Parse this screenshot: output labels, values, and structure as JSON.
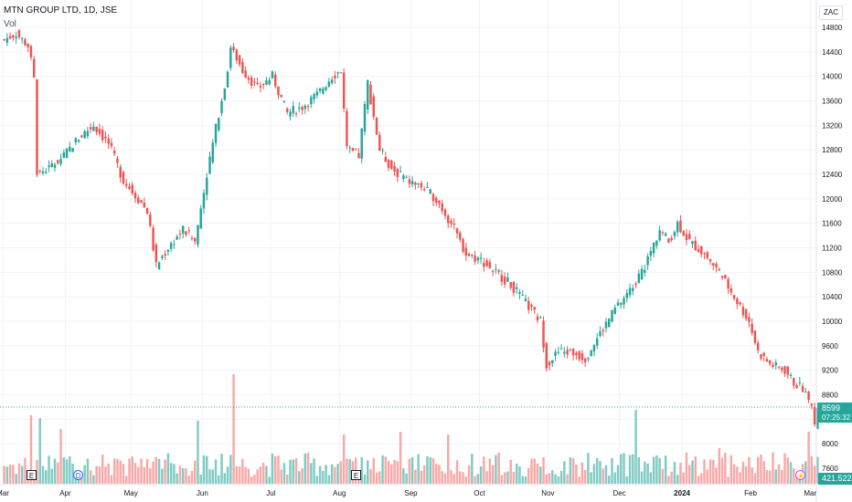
{
  "header": {
    "title": "MTN GROUP LTD, 1D, JSE",
    "volume_label": "Vol"
  },
  "currency": "ZAC",
  "last_price": "8599",
  "countdown": "07:25:32",
  "volume_last": "421.522K",
  "markers": {
    "earnings": "E",
    "dividend": "D",
    "flash": "⚡"
  },
  "colors": {
    "up": "#26a69a",
    "down": "#ef5350",
    "grid": "#f0f3fa",
    "axis_text": "#131722"
  },
  "chart_data": {
    "type": "candlestick",
    "title": "MTN GROUP LTD, 1D, JSE",
    "ylim": [
      7400,
      15000
    ],
    "y_ticks": [
      7600,
      8000,
      8400,
      8800,
      9200,
      9600,
      10000,
      10400,
      10800,
      11200,
      11600,
      12000,
      12400,
      12800,
      13200,
      13600,
      14000,
      14400,
      14800
    ],
    "x_ticks": [
      "Mar",
      "Apr",
      "May",
      "Jun",
      "Jul",
      "Aug",
      "Sep",
      "Oct",
      "Nov",
      "Dec",
      "2024",
      "Feb",
      "Mar"
    ],
    "x_tick_index": [
      0,
      21,
      43,
      67,
      90,
      113,
      137,
      160,
      183,
      207,
      228,
      251,
      271
    ],
    "close_path": [
      [
        0,
        14600
      ],
      [
        4,
        14700
      ],
      [
        8,
        14500
      ],
      [
        10,
        14000
      ],
      [
        11,
        12400
      ],
      [
        15,
        12500
      ],
      [
        20,
        12700
      ],
      [
        25,
        13000
      ],
      [
        30,
        13200
      ],
      [
        35,
        12900
      ],
      [
        40,
        12300
      ],
      [
        45,
        12000
      ],
      [
        48,
        11800
      ],
      [
        51,
        10900
      ],
      [
        55,
        11200
      ],
      [
        60,
        11500
      ],
      [
        64,
        11300
      ],
      [
        68,
        12400
      ],
      [
        72,
        13400
      ],
      [
        75,
        14100
      ],
      [
        76,
        14500
      ],
      [
        80,
        14100
      ],
      [
        85,
        13800
      ],
      [
        90,
        14000
      ],
      [
        95,
        13400
      ],
      [
        100,
        13500
      ],
      [
        105,
        13700
      ],
      [
        110,
        14000
      ],
      [
        113,
        14100
      ],
      [
        115,
        12800
      ],
      [
        119,
        12700
      ],
      [
        122,
        13900
      ],
      [
        126,
        12800
      ],
      [
        130,
        12500
      ],
      [
        135,
        12300
      ],
      [
        140,
        12200
      ],
      [
        145,
        12000
      ],
      [
        150,
        11600
      ],
      [
        155,
        11100
      ],
      [
        160,
        11000
      ],
      [
        165,
        10800
      ],
      [
        170,
        10600
      ],
      [
        175,
        10300
      ],
      [
        180,
        10000
      ],
      [
        182,
        9300
      ],
      [
        186,
        9500
      ],
      [
        190,
        9500
      ],
      [
        195,
        9400
      ],
      [
        200,
        9800
      ],
      [
        205,
        10200
      ],
      [
        210,
        10500
      ],
      [
        215,
        10900
      ],
      [
        220,
        11500
      ],
      [
        223,
        11300
      ],
      [
        226,
        11600
      ],
      [
        230,
        11300
      ],
      [
        235,
        11100
      ],
      [
        240,
        10800
      ],
      [
        245,
        10400
      ],
      [
        250,
        10000
      ],
      [
        253,
        9500
      ],
      [
        257,
        9300
      ],
      [
        262,
        9200
      ],
      [
        265,
        9000
      ],
      [
        268,
        8900
      ],
      [
        270,
        8700
      ],
      [
        271,
        8600
      ],
      [
        272,
        8300
      ],
      [
        273,
        8599
      ]
    ],
    "volume_scale_max": 4500,
    "volume_peaks": [
      {
        "index": 9,
        "value": 2500,
        "direction": "down"
      },
      {
        "index": 12,
        "value": 2400,
        "direction": "up"
      },
      {
        "index": 19,
        "value": 2000,
        "direction": "down"
      },
      {
        "index": 65,
        "value": 2300,
        "direction": "up"
      },
      {
        "index": 77,
        "value": 4000,
        "direction": "down"
      },
      {
        "index": 114,
        "value": 1800,
        "direction": "down"
      },
      {
        "index": 133,
        "value": 1900,
        "direction": "down"
      },
      {
        "index": 149,
        "value": 1800,
        "direction": "down"
      },
      {
        "index": 212,
        "value": 2700,
        "direction": "up"
      },
      {
        "index": 240,
        "value": 1300,
        "direction": "down"
      },
      {
        "index": 270,
        "value": 1900,
        "direction": "down"
      }
    ]
  }
}
